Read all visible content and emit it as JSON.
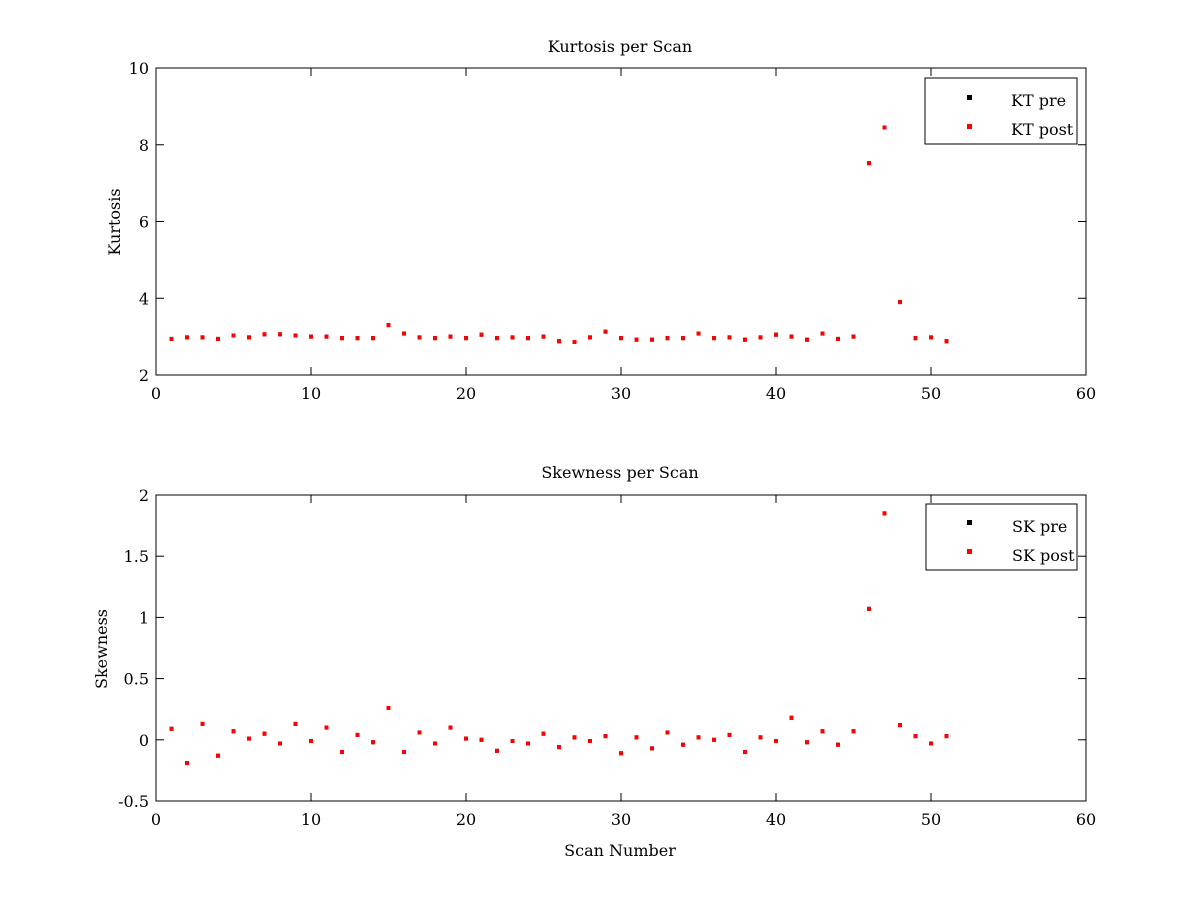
{
  "chart_data": [
    {
      "type": "scatter",
      "title": "Kurtosis per Scan",
      "xlabel": "",
      "ylabel": "Kurtosis",
      "xlim": [
        0,
        60
      ],
      "ylim": [
        2,
        10
      ],
      "xticks": [
        0,
        10,
        20,
        30,
        40,
        50,
        60
      ],
      "yticks": [
        2,
        4,
        6,
        8,
        10
      ],
      "grid": false,
      "legend_position": "top-right",
      "series": [
        {
          "name": "KT pre",
          "color": "#000000",
          "x": [
            1,
            2,
            3,
            4,
            5,
            6,
            7,
            8,
            9,
            10,
            11,
            12,
            13,
            14,
            15,
            16,
            17,
            18,
            19,
            20,
            21,
            22,
            23,
            24,
            25,
            26,
            27,
            28,
            29,
            30,
            31,
            32,
            33,
            34,
            35,
            36,
            37,
            38,
            39,
            40,
            41,
            42,
            43,
            44,
            45,
            46,
            47,
            48,
            49,
            50,
            51
          ],
          "y": [
            2.94,
            2.98,
            2.98,
            2.94,
            3.03,
            2.98,
            3.06,
            3.06,
            3.03,
            3.0,
            3.0,
            2.96,
            2.96,
            2.96,
            3.3,
            3.08,
            2.98,
            2.96,
            3.0,
            2.96,
            3.05,
            2.96,
            2.98,
            2.96,
            3.0,
            2.88,
            2.86,
            2.98,
            3.13,
            2.96,
            2.92,
            2.92,
            2.96,
            2.96,
            3.08,
            2.96,
            2.98,
            2.92,
            2.98,
            3.05,
            3.0,
            2.92,
            3.08,
            2.94,
            3.0,
            7.52,
            8.45,
            3.9,
            2.96,
            2.98,
            2.88
          ]
        },
        {
          "name": "KT post",
          "color": "#ff0000",
          "x": [
            1,
            2,
            3,
            4,
            5,
            6,
            7,
            8,
            9,
            10,
            11,
            12,
            13,
            14,
            15,
            16,
            17,
            18,
            19,
            20,
            21,
            22,
            23,
            24,
            25,
            26,
            27,
            28,
            29,
            30,
            31,
            32,
            33,
            34,
            35,
            36,
            37,
            38,
            39,
            40,
            41,
            42,
            43,
            44,
            45,
            46,
            47,
            48,
            49,
            50,
            51
          ],
          "y": [
            2.94,
            2.98,
            2.98,
            2.94,
            3.03,
            2.98,
            3.06,
            3.06,
            3.03,
            3.0,
            3.0,
            2.96,
            2.96,
            2.96,
            3.3,
            3.08,
            2.98,
            2.96,
            3.0,
            2.96,
            3.05,
            2.96,
            2.98,
            2.96,
            3.0,
            2.88,
            2.86,
            2.98,
            3.13,
            2.96,
            2.92,
            2.92,
            2.96,
            2.96,
            3.08,
            2.96,
            2.98,
            2.92,
            2.98,
            3.05,
            3.0,
            2.92,
            3.08,
            2.94,
            3.0,
            7.52,
            8.45,
            3.9,
            2.96,
            2.98,
            2.88
          ]
        }
      ]
    },
    {
      "type": "scatter",
      "title": "Skewness per Scan",
      "xlabel": "Scan Number",
      "ylabel": "Skewness",
      "xlim": [
        0,
        60
      ],
      "ylim": [
        -0.5,
        2
      ],
      "xticks": [
        0,
        10,
        20,
        30,
        40,
        50,
        60
      ],
      "yticks": [
        -0.5,
        0,
        0.5,
        1,
        1.5,
        2
      ],
      "grid": false,
      "legend_position": "top-right",
      "series": [
        {
          "name": "SK pre",
          "color": "#000000",
          "x": [
            1,
            2,
            3,
            4,
            5,
            6,
            7,
            8,
            9,
            10,
            11,
            12,
            13,
            14,
            15,
            16,
            17,
            18,
            19,
            20,
            21,
            22,
            23,
            24,
            25,
            26,
            27,
            28,
            29,
            30,
            31,
            32,
            33,
            34,
            35,
            36,
            37,
            38,
            39,
            40,
            41,
            42,
            43,
            44,
            45,
            46,
            47,
            48,
            49,
            50,
            51
          ],
          "y": [
            0.09,
            -0.19,
            0.13,
            -0.13,
            0.07,
            0.01,
            0.05,
            -0.03,
            0.13,
            -0.01,
            0.1,
            -0.1,
            0.04,
            -0.02,
            0.26,
            -0.1,
            0.06,
            -0.03,
            0.1,
            0.01,
            0.0,
            -0.09,
            -0.01,
            -0.03,
            0.05,
            -0.06,
            0.02,
            -0.01,
            0.03,
            -0.11,
            0.02,
            -0.07,
            0.06,
            -0.04,
            0.02,
            0.0,
            0.04,
            -0.1,
            0.02,
            -0.01,
            0.18,
            -0.02,
            0.07,
            -0.04,
            0.07,
            1.07,
            1.85,
            0.12,
            0.03,
            -0.03,
            0.03
          ]
        },
        {
          "name": "SK post",
          "color": "#ff0000",
          "x": [
            1,
            2,
            3,
            4,
            5,
            6,
            7,
            8,
            9,
            10,
            11,
            12,
            13,
            14,
            15,
            16,
            17,
            18,
            19,
            20,
            21,
            22,
            23,
            24,
            25,
            26,
            27,
            28,
            29,
            30,
            31,
            32,
            33,
            34,
            35,
            36,
            37,
            38,
            39,
            40,
            41,
            42,
            43,
            44,
            45,
            46,
            47,
            48,
            49,
            50,
            51
          ],
          "y": [
            0.09,
            -0.19,
            0.13,
            -0.13,
            0.07,
            0.01,
            0.05,
            -0.03,
            0.13,
            -0.01,
            0.1,
            -0.1,
            0.04,
            -0.02,
            0.26,
            -0.1,
            0.06,
            -0.03,
            0.1,
            0.01,
            0.0,
            -0.09,
            -0.01,
            -0.03,
            0.05,
            -0.06,
            0.02,
            -0.01,
            0.03,
            -0.11,
            0.02,
            -0.07,
            0.06,
            -0.04,
            0.02,
            0.0,
            0.04,
            -0.1,
            0.02,
            -0.01,
            0.18,
            -0.02,
            0.07,
            -0.04,
            0.07,
            1.07,
            1.85,
            0.12,
            0.03,
            -0.03,
            0.03
          ]
        }
      ]
    }
  ]
}
